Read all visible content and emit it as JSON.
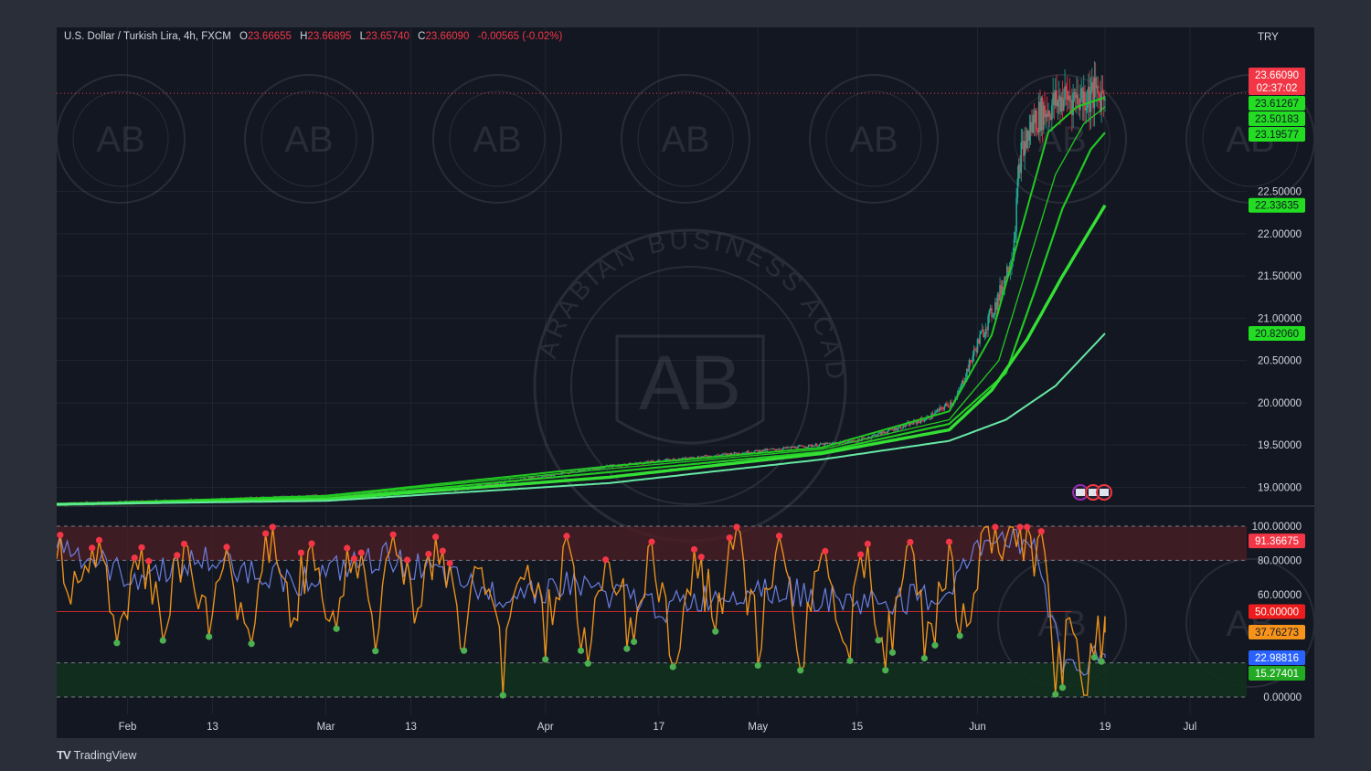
{
  "header": {
    "symbol": "U.S. Dollar / Turkish Lira, 4h, FXCM",
    "open_label": "O",
    "open": "23.66655",
    "high_label": "H",
    "high": "23.66895",
    "low_label": "L",
    "low": "23.65740",
    "close_label": "C",
    "close": "23.66090",
    "change": "-0.00565 (-0.02%)"
  },
  "currency": "TRY",
  "brand": {
    "name": "TradingView"
  },
  "watermark": {
    "small_text": "AB",
    "ring_text": "ARABIAN BUSINESS ACADEMY"
  },
  "colors": {
    "background": "#131722",
    "grid": "#1f2430",
    "up": "#22ab94",
    "down": "#f23645",
    "ema_green": "#22c922",
    "ema_bright": "#35e035",
    "ema_light": "#66e8a3",
    "rsi_line": "#e8901a",
    "rsi_line2": "#6b7ee0",
    "overbought_zone": "#4a1e24",
    "oversold_zone": "#12301e",
    "midline": "#c42b2b"
  },
  "price_labels": [
    {
      "text": "23.66090",
      "sub": "02:37:02",
      "color": "#f23645",
      "value": 23.6609
    },
    {
      "text": "23.61267",
      "color": "#22dd22",
      "value": 23.61267
    },
    {
      "text": "23.50183",
      "color": "#22dd22",
      "value": 23.50183
    },
    {
      "text": "23.19577",
      "color": "#22dd22",
      "value": 23.19577
    },
    {
      "text": "22.33635",
      "color": "#22dd22",
      "value": 22.33635
    },
    {
      "text": "20.82060",
      "color": "#22dd22",
      "value": 20.8206
    }
  ],
  "rsi_labels": [
    {
      "text": "91.36675",
      "color": "#f23645",
      "value": 91.36675
    },
    {
      "text": "50.00000",
      "color": "#ee1c1c",
      "value": 50
    },
    {
      "text": "37.76273",
      "color": "#f7931a",
      "value": 37.76273
    },
    {
      "text": "22.98816",
      "color": "#2962ff",
      "value": 22.98816
    },
    {
      "text": "15.27401",
      "color": "#22ab22",
      "value": 15.27401
    }
  ],
  "chart_data": [
    {
      "type": "candlestick",
      "title": "",
      "x_axis": {
        "tick_labels": [
          "Feb",
          "13",
          "Mar",
          "13",
          "Apr",
          "17",
          "May",
          "15",
          "Jun",
          "19",
          "Jul"
        ],
        "tick_dates": [
          "2023-02-01",
          "2023-02-13",
          "2023-03-01",
          "2023-03-13",
          "2023-04-01",
          "2023-04-17",
          "2023-05-01",
          "2023-05-15",
          "2023-06-01",
          "2023-06-19",
          "2023-07-01"
        ],
        "range": [
          "2023-01-22",
          "2023-07-09"
        ]
      },
      "y_axis": {
        "range": [
          18.8,
          23.9
        ],
        "tick_labels": [
          "19.00000",
          "19.50000",
          "20.00000",
          "20.50000",
          "21.00000",
          "21.50000",
          "22.00000",
          "22.50000"
        ],
        "ticks": [
          19,
          19.5,
          20,
          20.5,
          21,
          21.5,
          22,
          22.5
        ]
      },
      "close_path": {
        "x": [
          "2023-01-22",
          "2023-02-13",
          "2023-03-01",
          "2023-03-20",
          "2023-04-10",
          "2023-05-01",
          "2023-05-15",
          "2023-05-25",
          "2023-05-29",
          "2023-06-01",
          "2023-06-04",
          "2023-06-06",
          "2023-06-07",
          "2023-06-09",
          "2023-06-13",
          "2023-06-16",
          "2023-06-19"
        ],
        "y": [
          18.8,
          18.85,
          18.9,
          18.98,
          19.25,
          19.43,
          19.55,
          19.82,
          20.05,
          20.7,
          21.25,
          21.8,
          22.9,
          23.35,
          23.6,
          23.62,
          23.66
        ]
      },
      "series": [
        {
          "name": "",
          "x": [
            "2023-01-22",
            "2023-03-01",
            "2023-04-10",
            "2023-05-10",
            "2023-05-28",
            "2023-06-03",
            "2023-06-07",
            "2023-06-11",
            "2023-06-15",
            "2023-06-19"
          ],
          "y": [
            18.8,
            18.9,
            19.25,
            19.47,
            19.9,
            20.8,
            22.0,
            23.2,
            23.5,
            23.61267
          ]
        },
        {
          "name": "",
          "x": [
            "2023-01-22",
            "2023-03-01",
            "2023-04-10",
            "2023-05-10",
            "2023-05-28",
            "2023-06-04",
            "2023-06-08",
            "2023-06-12",
            "2023-06-16",
            "2023-06-19"
          ],
          "y": [
            18.8,
            18.89,
            19.22,
            19.45,
            19.8,
            20.5,
            21.6,
            22.7,
            23.3,
            23.50183
          ]
        },
        {
          "name": "",
          "x": [
            "2023-01-22",
            "2023-03-01",
            "2023-04-10",
            "2023-05-10",
            "2023-05-28",
            "2023-06-05",
            "2023-06-09",
            "2023-06-13",
            "2023-06-17",
            "2023-06-19"
          ],
          "y": [
            18.8,
            18.87,
            19.18,
            19.42,
            19.75,
            20.35,
            21.3,
            22.3,
            23.0,
            23.19577
          ]
        },
        {
          "name": "",
          "x": [
            "2023-01-22",
            "2023-03-01",
            "2023-04-10",
            "2023-05-10",
            "2023-05-28",
            "2023-06-03",
            "2023-06-08",
            "2023-06-13",
            "2023-06-19"
          ],
          "y": [
            18.8,
            18.86,
            19.12,
            19.4,
            19.68,
            20.15,
            20.75,
            21.5,
            22.33635
          ]
        },
        {
          "name": "",
          "x": [
            "2023-01-22",
            "2023-03-01",
            "2023-04-10",
            "2023-05-10",
            "2023-05-28",
            "2023-06-05",
            "2023-06-12",
            "2023-06-19"
          ],
          "y": [
            18.8,
            18.84,
            19.05,
            19.33,
            19.55,
            19.8,
            20.2,
            20.8206
          ]
        }
      ]
    },
    {
      "type": "line",
      "title": "",
      "y_axis": {
        "range": [
          0,
          100
        ],
        "tick_labels": [
          "0.00000",
          "60.00000",
          "80.00000",
          "100.00000"
        ],
        "ticks": [
          0,
          60,
          80,
          100
        ],
        "bands": {
          "overbought": [
            80,
            100
          ],
          "oversold": [
            0,
            20
          ],
          "midline": 50
        }
      },
      "series": [
        {
          "name": "",
          "x": [
            "2023-01-22",
            "2023-01-25",
            "2023-01-28",
            "2023-01-31",
            "2023-02-03",
            "2023-02-06",
            "2023-02-09",
            "2023-02-12",
            "2023-02-15",
            "2023-02-18",
            "2023-02-21",
            "2023-02-24",
            "2023-02-27",
            "2023-03-02",
            "2023-03-05",
            "2023-03-08",
            "2023-03-11",
            "2023-03-14",
            "2023-03-17",
            "2023-03-20",
            "2023-03-23",
            "2023-03-26",
            "2023-03-29",
            "2023-04-01",
            "2023-04-04",
            "2023-04-07",
            "2023-04-10",
            "2023-04-13",
            "2023-04-16",
            "2023-04-19",
            "2023-04-22",
            "2023-04-25",
            "2023-04-28",
            "2023-05-01",
            "2023-05-04",
            "2023-05-07",
            "2023-05-10",
            "2023-05-13",
            "2023-05-16",
            "2023-05-19",
            "2023-05-22",
            "2023-05-25",
            "2023-05-28",
            "2023-05-31",
            "2023-06-02",
            "2023-06-04",
            "2023-06-06",
            "2023-06-08",
            "2023-06-10",
            "2023-06-12",
            "2023-06-14",
            "2023-06-16",
            "2023-06-18",
            "2023-06-19"
          ],
          "y": [
            98,
            55,
            90,
            30,
            85,
            45,
            92,
            40,
            88,
            35,
            95,
            42,
            90,
            38,
            96,
            45,
            93,
            55,
            88,
            35,
            80,
            15,
            85,
            40,
            90,
            20,
            85,
            35,
            88,
            25,
            80,
            45,
            98,
            30,
            85,
            25,
            88,
            20,
            80,
            25,
            85,
            30,
            80,
            25,
            98,
            95,
            100,
            88,
            85,
            15,
            30,
            12,
            35,
            37.76
          ]
        },
        {
          "name": "",
          "x": [
            "2023-01-22",
            "2023-02-01",
            "2023-02-12",
            "2023-02-25",
            "2023-03-10",
            "2023-03-24",
            "2023-04-05",
            "2023-04-18",
            "2023-05-01",
            "2023-05-14",
            "2023-05-27",
            "2023-06-03",
            "2023-06-09",
            "2023-06-13",
            "2023-06-19"
          ],
          "y": [
            90,
            70,
            80,
            68,
            82,
            60,
            66,
            52,
            65,
            55,
            58,
            96,
            90,
            20,
            22.99
          ]
        }
      ]
    }
  ]
}
